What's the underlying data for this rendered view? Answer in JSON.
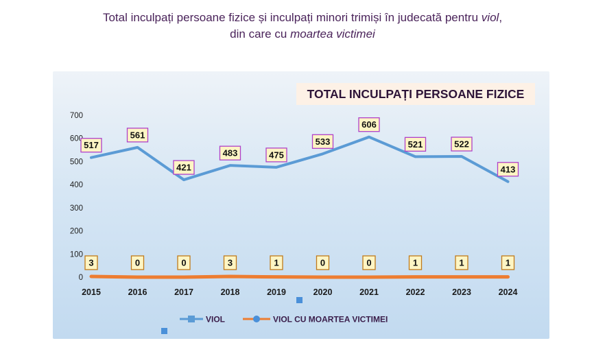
{
  "header": {
    "title_part1": "Total inculpați persoane fizice și inculpați minori trimiși în judecată pentru",
    "title_em1": "viol",
    "title_part2": "din care cu",
    "title_em2": "moartea victimei"
  },
  "chart_data": {
    "type": "line",
    "title": "TOTAL INCULPAȚI PERSOANE FIZICE",
    "categories": [
      "2015",
      "2016",
      "2017",
      "2018",
      "2019",
      "2020",
      "2021",
      "2022",
      "2023",
      "2024"
    ],
    "ylim": [
      0,
      700
    ],
    "yticks": [
      0,
      100,
      200,
      300,
      400,
      500,
      600,
      700
    ],
    "grid": false,
    "legend_position": "bottom",
    "series": [
      {
        "name": "VIOL",
        "color": "#5b9bd5",
        "marker": "square",
        "values": [
          517,
          561,
          421,
          483,
          475,
          533,
          606,
          521,
          522,
          413
        ]
      },
      {
        "name": "VIOL CU MOARTEA VICTIMEI",
        "color": "#ed7d31",
        "marker": "circle",
        "values": [
          3,
          0,
          0,
          3,
          1,
          0,
          0,
          1,
          1,
          1
        ]
      }
    ]
  }
}
